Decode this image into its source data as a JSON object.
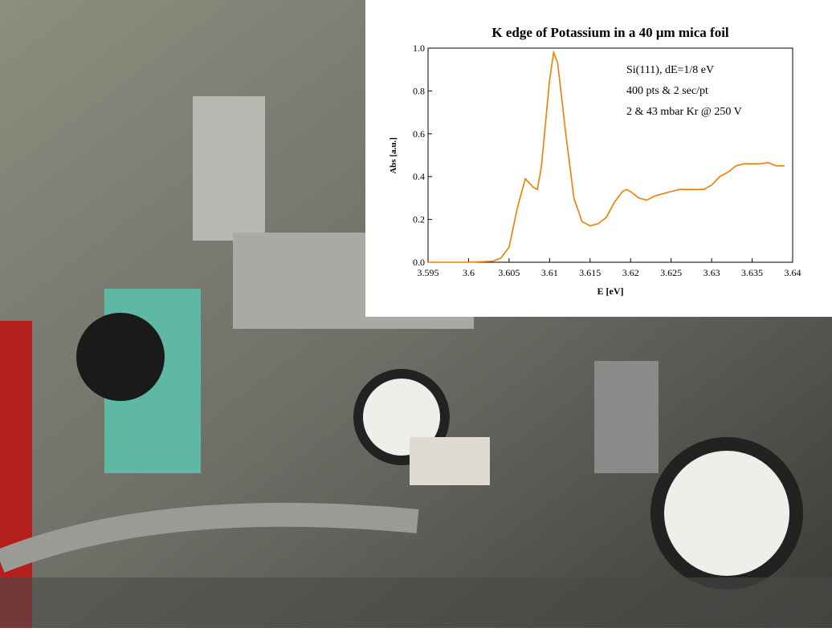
{
  "chart_data": {
    "type": "line",
    "title": "K edge of Potassium in a 40 μm mica foil",
    "x_label": "E [eV]",
    "y_label": "Abs [a.u.]",
    "annotations": [
      "Si(111), dE=1/8 eV",
      "400 pts & 2 sec/pt",
      "2 & 43 mbar Kr @ 250 V"
    ],
    "color": "#f07c00",
    "x": [
      3.595,
      3.6,
      3.603,
      3.604,
      3.605,
      3.606,
      3.607,
      3.608,
      3.6085,
      3.609,
      3.61,
      3.6105,
      3.611,
      3.612,
      3.613,
      3.614,
      3.615,
      3.616,
      3.617,
      3.618,
      3.619,
      3.6195,
      3.62,
      3.621,
      3.622,
      3.623,
      3.625,
      3.626,
      3.627,
      3.628,
      3.629,
      3.63,
      3.631,
      3.632,
      3.633,
      3.634,
      3.635,
      3.636,
      3.637,
      3.638,
      3.639
    ],
    "values": [
      0.0,
      0.0,
      0.005,
      0.02,
      0.07,
      0.25,
      0.39,
      0.35,
      0.34,
      0.45,
      0.85,
      0.98,
      0.93,
      0.6,
      0.3,
      0.19,
      0.17,
      0.18,
      0.21,
      0.28,
      0.33,
      0.34,
      0.33,
      0.3,
      0.29,
      0.31,
      0.33,
      0.34,
      0.34,
      0.34,
      0.34,
      0.36,
      0.4,
      0.42,
      0.45,
      0.46,
      0.46,
      0.46,
      0.465,
      0.45,
      0.45
    ],
    "xlim": [
      3.595,
      3.64
    ],
    "xticks": [
      3.595,
      3.6,
      3.605,
      3.61,
      3.615,
      3.62,
      3.625,
      3.63,
      3.635,
      3.64
    ],
    "ylim": [
      0,
      1
    ],
    "yticks": [
      {
        "value": 0,
        "label": "0.0"
      },
      0.2,
      0.4,
      0.6,
      0.8,
      {
        "value": 1,
        "label": "1.0"
      }
    ]
  }
}
